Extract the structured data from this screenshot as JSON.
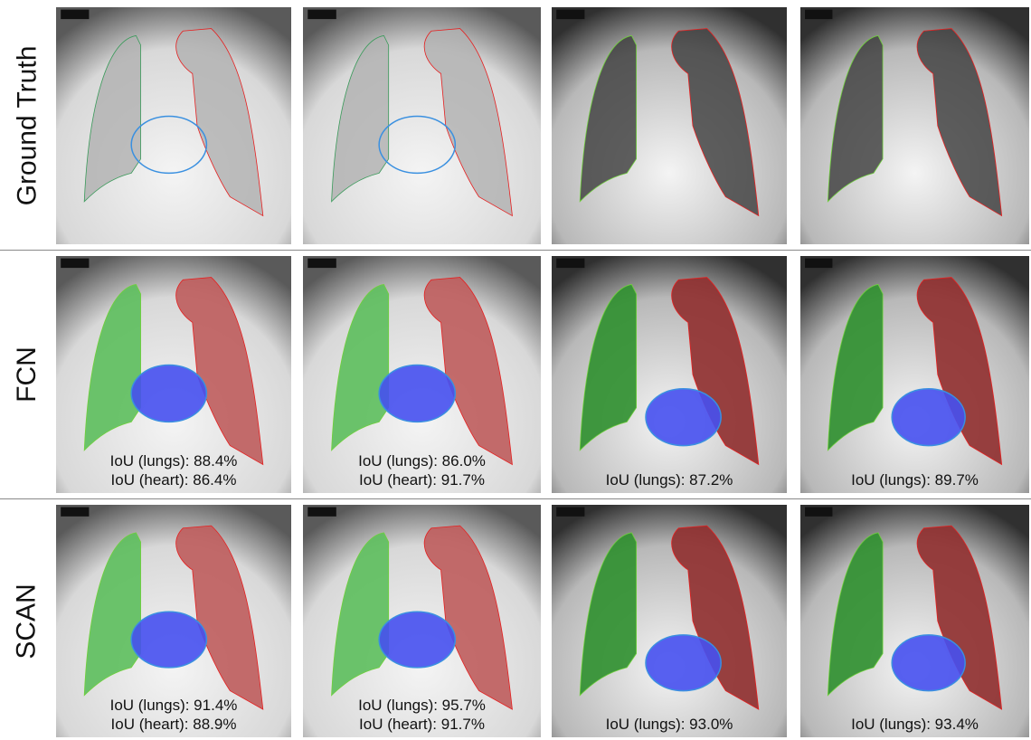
{
  "rows": [
    {
      "label": "Ground Truth",
      "panels": [
        {
          "captions": []
        },
        {
          "captions": []
        },
        {
          "captions": []
        },
        {
          "captions": []
        }
      ]
    },
    {
      "label": "FCN",
      "panels": [
        {
          "captions": [
            "IoU (lungs): 88.4%",
            "IoU (heart): 86.4%"
          ]
        },
        {
          "captions": [
            "IoU (lungs): 86.0%",
            "IoU (heart): 91.7%"
          ]
        },
        {
          "captions": [
            "IoU (lungs): 87.2%"
          ]
        },
        {
          "captions": [
            "IoU (lungs): 89.7%"
          ]
        }
      ]
    },
    {
      "label": "SCAN",
      "panels": [
        {
          "captions": [
            "IoU (lungs): 91.4%",
            "IoU (heart): 88.9%"
          ]
        },
        {
          "captions": [
            "IoU (lungs): 95.7%",
            "IoU (heart): 91.7%"
          ]
        },
        {
          "captions": [
            "IoU (lungs): 93.0%"
          ]
        },
        {
          "captions": [
            "IoU (lungs): 93.4%"
          ]
        }
      ]
    }
  ]
}
